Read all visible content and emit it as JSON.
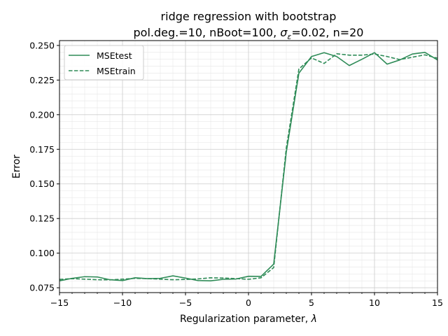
{
  "chart_data": {
    "type": "line",
    "title": "ridge regression with bootstrap",
    "subtitle": {
      "part1": "pol.deg.=10,  nBoot=100,  ",
      "sigma": "σ",
      "sigma_sub": "ε",
      "part2": "=0.02,  n=20"
    },
    "xlabel": {
      "text": "Regularization parameter, ",
      "symbol": "λ"
    },
    "ylabel": "Error",
    "xlim": [
      -15,
      15
    ],
    "ylim": [
      0.0715,
      0.2535
    ],
    "xticks": [
      -15,
      -10,
      -5,
      0,
      5,
      10,
      15
    ],
    "xtick_labels": [
      "−15",
      "−10",
      "−5",
      "0",
      "5",
      "10",
      "15"
    ],
    "yticks": [
      0.075,
      0.1,
      0.125,
      0.15,
      0.175,
      0.2,
      0.225,
      0.25
    ],
    "ytick_labels": [
      "0.075",
      "0.100",
      "0.125",
      "0.150",
      "0.175",
      "0.200",
      "0.225",
      "0.250"
    ],
    "grid": true,
    "minor_grid": true,
    "legend_position": "top-left",
    "series": [
      {
        "name": "MSEtest",
        "color": "#2e8b57",
        "linestyle": "solid",
        "x": [
          -15,
          -14,
          -13,
          -12,
          -11,
          -10,
          -9,
          -8,
          -7,
          -6,
          -5,
          -4,
          -3,
          -2,
          -1,
          0,
          1,
          2,
          3,
          4,
          5,
          6,
          7,
          8,
          9,
          10,
          11,
          12,
          13,
          14,
          15
        ],
        "y": [
          0.08,
          0.0818,
          0.083,
          0.0828,
          0.0808,
          0.0802,
          0.0822,
          0.0816,
          0.0818,
          0.0836,
          0.082,
          0.0802,
          0.08,
          0.0811,
          0.0813,
          0.0833,
          0.0832,
          0.0921,
          0.173,
          0.23,
          0.242,
          0.2448,
          0.242,
          0.2355,
          0.24,
          0.2448,
          0.2365,
          0.2395,
          0.2438,
          0.245,
          0.2395
        ]
      },
      {
        "name": "MSEtrain",
        "color": "#2e8b57",
        "linestyle": "dashed",
        "x": [
          -15,
          -14,
          -13,
          -12,
          -11,
          -10,
          -9,
          -8,
          -7,
          -6,
          -5,
          -4,
          -3,
          -2,
          -1,
          0,
          1,
          2,
          3,
          4,
          5,
          6,
          7,
          8,
          9,
          10,
          11,
          12,
          13,
          14,
          15
        ],
        "y": [
          0.081,
          0.0816,
          0.0812,
          0.0808,
          0.0807,
          0.0812,
          0.0818,
          0.0816,
          0.0812,
          0.0808,
          0.081,
          0.0814,
          0.0822,
          0.082,
          0.0816,
          0.0811,
          0.0822,
          0.0896,
          0.176,
          0.233,
          0.241,
          0.237,
          0.244,
          0.243,
          0.243,
          0.2438,
          0.242,
          0.2398,
          0.2415,
          0.2432,
          0.2408
        ]
      }
    ]
  }
}
